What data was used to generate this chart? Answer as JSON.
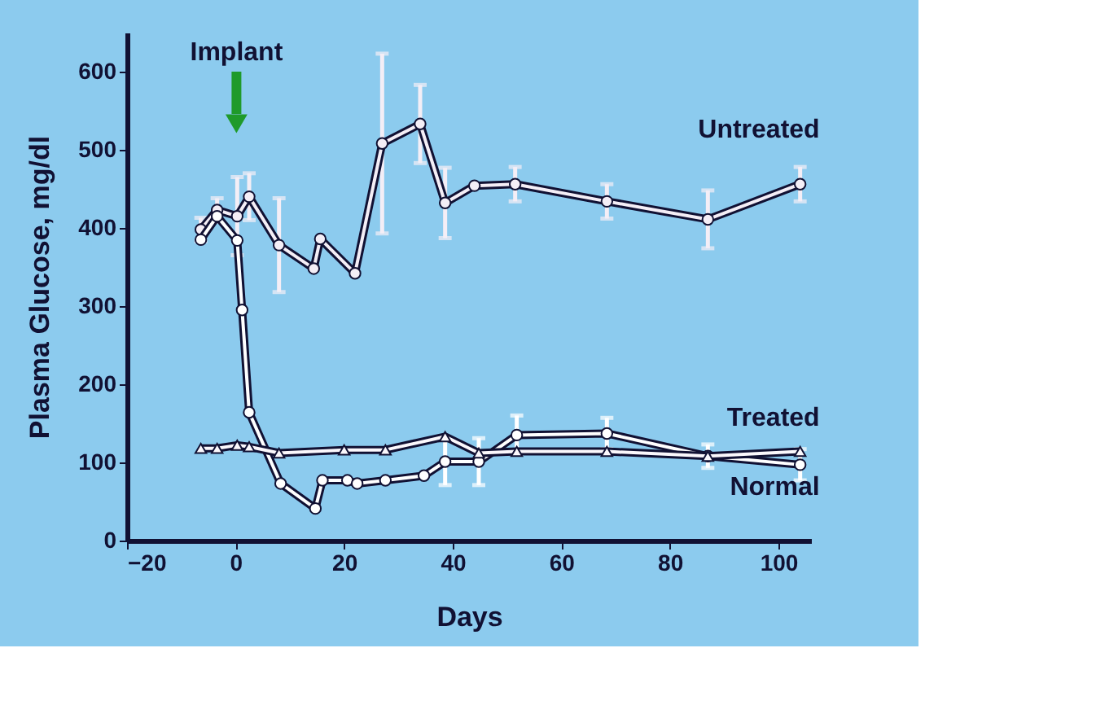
{
  "chart_data": {
    "type": "line",
    "xlabel": "Days",
    "ylabel": "Plasma Glucose, mg/dl",
    "xlim": [
      -20,
      106
    ],
    "xticks": [
      -20,
      0,
      20,
      40,
      60,
      80,
      100
    ],
    "ylim": [
      0,
      650
    ],
    "yticks": [
      0,
      100,
      200,
      300,
      400,
      500,
      600
    ],
    "grid": false,
    "legend": "right",
    "marker": "circle",
    "line_style": "solid",
    "annotations": [
      "Implant"
    ],
    "series": [
      {
        "name": "Untreated",
        "color": "#f4eef6",
        "x": [
          -6.4,
          -3.4,
          0.3,
          2.5,
          8,
          14.4,
          15.6,
          22,
          27,
          34,
          38.6,
          44,
          51.5,
          68.4,
          87,
          104
        ],
        "values": [
          398,
          423,
          415,
          440,
          378,
          348,
          386,
          342,
          508,
          533,
          432,
          454,
          456,
          434,
          411,
          456
        ],
        "errors": [
          15,
          15,
          50,
          30,
          60,
          null,
          null,
          null,
          115,
          50,
          45,
          null,
          22,
          22,
          37,
          22
        ]
      },
      {
        "name": "Treated",
        "color": "#ffffff",
        "x": [
          -6.4,
          -3.4,
          0.3,
          1.2,
          2.5,
          8.3,
          14.7,
          16,
          20.6,
          22.4,
          27.6,
          34.7,
          38.6,
          44.8,
          51.8,
          68.4,
          87,
          104
        ],
        "values": [
          385,
          415,
          384,
          295,
          164,
          73,
          41,
          77,
          77,
          73,
          77,
          83,
          101,
          101,
          135,
          137,
          108,
          97
        ],
        "errors": [
          null,
          null,
          null,
          null,
          null,
          null,
          null,
          null,
          null,
          null,
          null,
          null,
          30,
          30,
          25,
          20,
          15,
          20
        ]
      },
      {
        "name": "Normal",
        "color": "#fbf8fc",
        "marker": "triangle",
        "x": [
          -6.4,
          -3.4,
          0.3,
          2.5,
          8,
          20,
          27.6,
          38.6,
          44.8,
          51.8,
          68.4,
          87,
          104
        ],
        "values": [
          118,
          118,
          122,
          120,
          112,
          116,
          116,
          133,
          112,
          114,
          114,
          108,
          114
        ]
      }
    ]
  }
}
